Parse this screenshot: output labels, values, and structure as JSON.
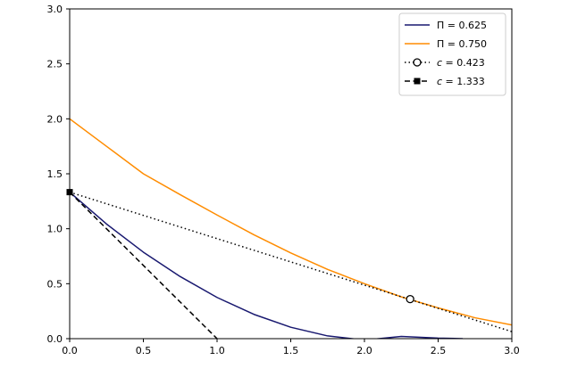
{
  "chart_data": {
    "type": "line",
    "title": "",
    "xlabel": "",
    "ylabel": "",
    "xlim": [
      0,
      3
    ],
    "ylim": [
      0,
      3
    ],
    "x_ticks": [
      "0.0",
      "0.5",
      "1.0",
      "1.5",
      "2.0",
      "2.5",
      "3.0"
    ],
    "y_ticks": [
      "0.0",
      "0.5",
      "1.0",
      "1.5",
      "2.0",
      "2.5",
      "3.0"
    ],
    "grid": false,
    "legend_position": "top-right",
    "series": [
      {
        "name": "Π = 0.625",
        "legend_symbol": "Π",
        "legend_value": "= 0.625",
        "color": "#191970",
        "style": "solid",
        "x": [
          0,
          0.25,
          0.5,
          0.75,
          1.0,
          1.25,
          1.5,
          1.75,
          2.0,
          2.25,
          2.5,
          2.667
        ],
        "y": [
          1.333,
          1.043,
          0.787,
          0.565,
          0.375,
          0.221,
          0.104,
          0.025,
          -0.013,
          0.02,
          0.005,
          0.0
        ]
      },
      {
        "name": "Π = 0.750",
        "legend_symbol": "Π",
        "legend_value": "= 0.750",
        "color": "#ff8c00",
        "style": "solid",
        "x": [
          0,
          0.25,
          0.5,
          0.75,
          1.0,
          1.25,
          1.5,
          1.75,
          2.0,
          2.25,
          2.5,
          2.75,
          3.0
        ],
        "y": [
          2.0,
          1.75,
          1.5,
          1.31,
          1.125,
          0.945,
          0.78,
          0.63,
          0.5,
          0.38,
          0.28,
          0.19,
          0.125
        ]
      },
      {
        "name": "c = 0.423",
        "legend_symbol": "c",
        "legend_value": "= 0.423",
        "color": "#000000",
        "style": "dotted",
        "marker": "open-circle",
        "marker_point": [
          2.31,
          0.36
        ],
        "x": [
          0,
          3.0
        ],
        "y": [
          1.333,
          0.064
        ]
      },
      {
        "name": "c = 1.333",
        "legend_symbol": "c",
        "legend_value": "= 1.333",
        "color": "#000000",
        "style": "dashed",
        "marker": "filled-square",
        "marker_point": [
          0,
          1.333
        ],
        "x": [
          0,
          1.0
        ],
        "y": [
          1.333,
          0
        ]
      }
    ]
  }
}
